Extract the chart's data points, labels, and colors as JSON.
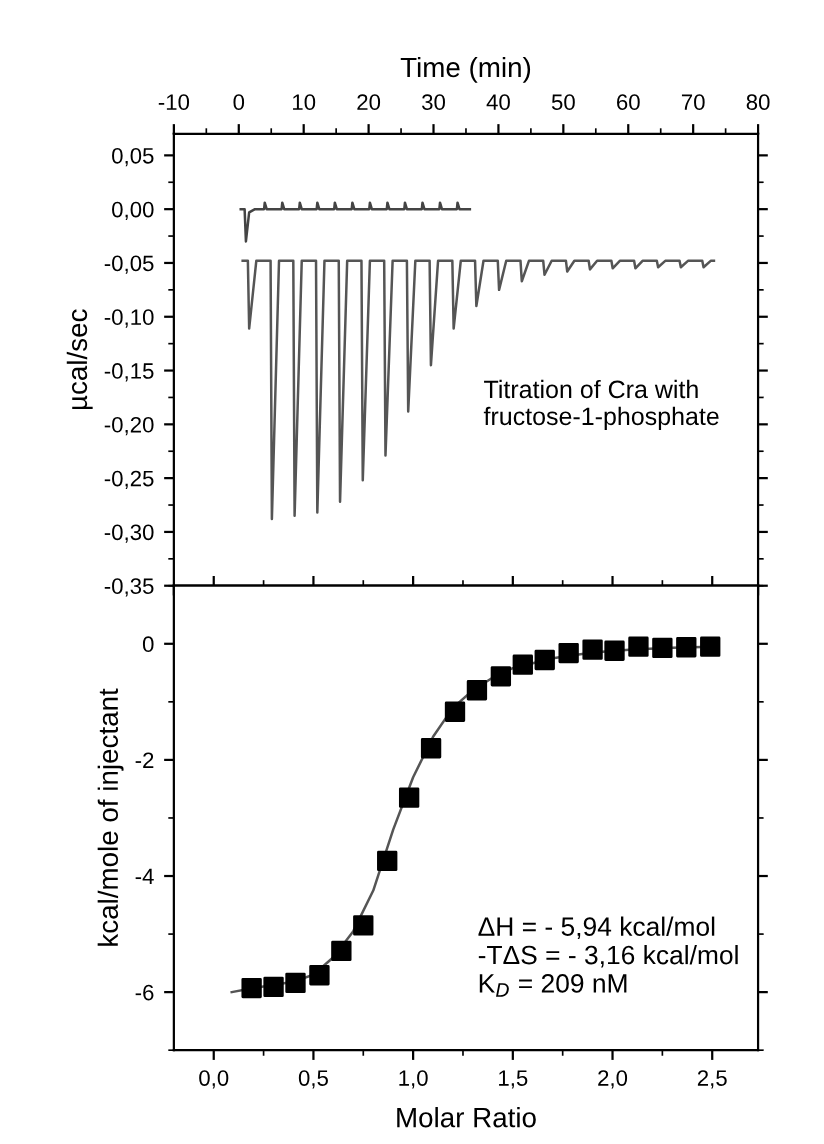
{
  "chart_data": [
    {
      "type": "line",
      "xlabel": "Time (min)",
      "ylabel": "µcal/sec",
      "xlim": [
        -10,
        80
      ],
      "xticks": [
        -10,
        0,
        10,
        20,
        30,
        40,
        50,
        60,
        70,
        80
      ],
      "ylim": [
        -0.35,
        0.07
      ],
      "yticks": [
        {
          "value": 0.05,
          "label": "0,05"
        },
        {
          "value": 0.0,
          "label": "0,00"
        },
        {
          "value": -0.05,
          "label": "-0,05"
        },
        {
          "value": -0.1,
          "label": "-0,10"
        },
        {
          "value": -0.15,
          "label": "-0,15"
        },
        {
          "value": -0.2,
          "label": "-0,20"
        },
        {
          "value": -0.25,
          "label": "-0,25"
        },
        {
          "value": -0.3,
          "label": "-0,30"
        },
        {
          "value": -0.35,
          "label": "-0,35"
        }
      ],
      "grid": false,
      "line_style": "solid",
      "marker": "none",
      "annotations": [
        "Titration of Cra with\nfructose-1-phosphate"
      ],
      "series": [
        {
          "color": "#444444",
          "x": [
            0.3,
            0.9,
            1.1,
            1.6,
            2.5,
            3.9,
            4.0,
            4.3,
            6.6,
            6.7,
            7.0,
            9.3,
            9.4,
            9.7,
            12.0,
            12.1,
            12.4,
            14.7,
            14.8,
            15.1,
            17.4,
            17.5,
            17.8,
            20.1,
            20.2,
            20.5,
            22.8,
            22.9,
            23.2,
            25.5,
            25.6,
            25.9,
            28.2,
            28.3,
            28.6,
            30.9,
            31.0,
            31.3,
            33.6,
            33.7,
            34.0,
            35.6
          ],
          "values": [
            0.0,
            0.0,
            -0.03,
            -0.003,
            0.0,
            0.0,
            0.006,
            0.0,
            0.0,
            0.006,
            0.0,
            0.0,
            0.006,
            0.0,
            0.0,
            0.006,
            0.0,
            0.0,
            0.006,
            0.0,
            0.0,
            0.006,
            0.0,
            0.0,
            0.006,
            0.0,
            0.0,
            0.006,
            0.0,
            0.0,
            0.006,
            0.0,
            0.0,
            0.006,
            0.0,
            0.0,
            0.006,
            0.0,
            0.0,
            0.006,
            0.0,
            0.0
          ]
        },
        {
          "color": "#555555",
          "x": [
            0.6,
            1.4,
            1.6,
            2.7,
            4.9,
            5.1,
            6.2,
            8.4,
            8.6,
            9.7,
            11.9,
            12.1,
            13.2,
            15.4,
            15.6,
            16.7,
            18.9,
            19.1,
            20.2,
            22.4,
            22.6,
            23.7,
            25.9,
            26.1,
            27.2,
            29.4,
            29.6,
            30.7,
            32.9,
            33.1,
            34.2,
            36.4,
            36.6,
            37.7,
            39.9,
            40.1,
            41.2,
            43.4,
            43.6,
            44.7,
            46.9,
            47.1,
            48.2,
            50.4,
            50.6,
            51.7,
            53.9,
            54.1,
            55.2,
            57.4,
            57.6,
            58.7,
            60.9,
            61.1,
            62.2,
            64.4,
            64.6,
            65.7,
            67.9,
            68.1,
            69.2,
            71.4,
            71.6,
            72.7,
            73.2
          ],
          "values": [
            -0.048,
            -0.048,
            -0.111,
            -0.048,
            -0.048,
            -0.288,
            -0.048,
            -0.048,
            -0.285,
            -0.048,
            -0.048,
            -0.282,
            -0.048,
            -0.048,
            -0.272,
            -0.048,
            -0.048,
            -0.252,
            -0.048,
            -0.048,
            -0.229,
            -0.048,
            -0.048,
            -0.188,
            -0.048,
            -0.048,
            -0.145,
            -0.048,
            -0.048,
            -0.111,
            -0.048,
            -0.048,
            -0.09,
            -0.048,
            -0.048,
            -0.075,
            -0.048,
            -0.048,
            -0.067,
            -0.048,
            -0.048,
            -0.061,
            -0.048,
            -0.048,
            -0.058,
            -0.048,
            -0.048,
            -0.056,
            -0.048,
            -0.048,
            -0.055,
            -0.048,
            -0.048,
            -0.055,
            -0.048,
            -0.048,
            -0.054,
            -0.048,
            -0.048,
            -0.054,
            -0.048,
            -0.048,
            -0.054,
            -0.048,
            -0.048
          ]
        }
      ]
    },
    {
      "type": "scatter",
      "xlabel": "Molar Ratio",
      "ylabel": "kcal/mole of injectant",
      "xlim": [
        -0.2,
        2.73
      ],
      "ylim": [
        -7,
        1
      ],
      "xticks": [
        {
          "value": 0.0,
          "label": "0,0"
        },
        {
          "value": 0.5,
          "label": "0,5"
        },
        {
          "value": 1.0,
          "label": "1,0"
        },
        {
          "value": 1.5,
          "label": "1,5"
        },
        {
          "value": 2.0,
          "label": "2,0"
        },
        {
          "value": 2.5,
          "label": "2,5"
        }
      ],
      "yticks": [
        -6,
        -4,
        -2,
        0
      ],
      "grid": false,
      "marker": "square",
      "annotations": [
        "ΔH = - 5,94 kcal/mol\n-TΔS = - 3,16 kcal/mol\nK$_{D}$ = 209 nM"
      ],
      "series": [
        {
          "color": "#000000",
          "x": [
            0.19,
            0.3,
            0.41,
            0.53,
            0.64,
            0.75,
            0.87,
            0.98,
            1.09,
            1.21,
            1.32,
            1.44,
            1.55,
            1.66,
            1.78,
            1.9,
            2.01,
            2.13,
            2.25,
            2.37,
            2.49
          ],
          "values": [
            -5.93,
            -5.91,
            -5.84,
            -5.71,
            -5.29,
            -4.85,
            -3.74,
            -2.65,
            -1.8,
            -1.17,
            -0.8,
            -0.56,
            -0.36,
            -0.28,
            -0.16,
            -0.1,
            -0.12,
            -0.05,
            -0.07,
            -0.06,
            -0.05
          ]
        },
        {
          "type": "line",
          "color": "#555555",
          "marker": "none",
          "line_style": "solid",
          "x": [
            0.09,
            0.2,
            0.4,
            0.5,
            0.6,
            0.7,
            0.8,
            0.9,
            1.0,
            1.1,
            1.2,
            1.3,
            1.4,
            1.5,
            1.7,
            1.9,
            2.1,
            2.3,
            2.49
          ],
          "values": [
            -6.0,
            -5.93,
            -5.82,
            -5.7,
            -5.4,
            -4.95,
            -4.25,
            -3.2,
            -2.3,
            -1.6,
            -1.1,
            -0.8,
            -0.58,
            -0.42,
            -0.25,
            -0.15,
            -0.1,
            -0.07,
            -0.05
          ]
        }
      ]
    }
  ]
}
